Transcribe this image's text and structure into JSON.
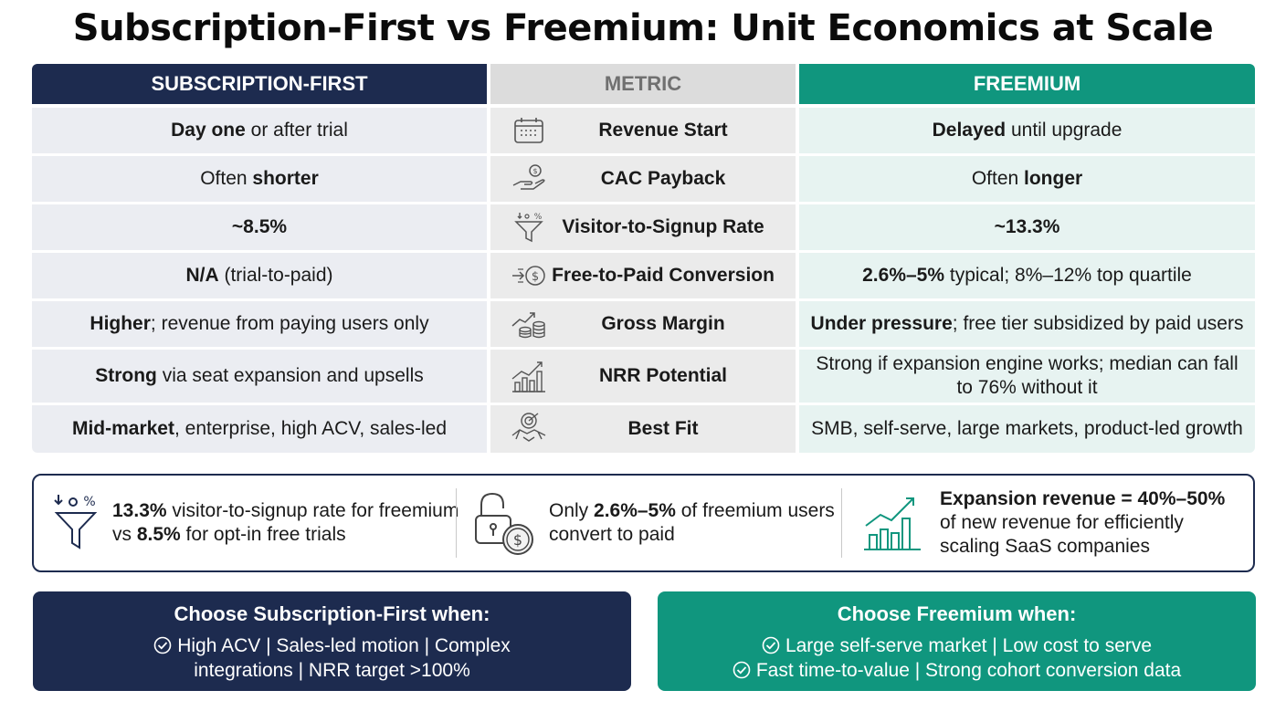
{
  "title": "Subscription-First vs Freemium: Unit Economics at Scale",
  "colors": {
    "navy": "#1d2b4f",
    "teal": "#10967e",
    "metric_header": "#dcdcdc"
  },
  "headers": {
    "left": "SUBSCRIPTION-FIRST",
    "mid": "METRIC",
    "right": "FREEMIUM"
  },
  "rows": [
    {
      "icon": "calendar-icon",
      "metric": "Revenue Start",
      "left_bold": "Day one",
      "left_rest": " or after trial",
      "right_bold": "Delayed",
      "right_rest": " until upgrade"
    },
    {
      "icon": "hand-coin-icon",
      "metric": "CAC Payback",
      "left_pre": "Often ",
      "left_bold": "shorter",
      "right_pre": "Often ",
      "right_bold": "longer"
    },
    {
      "icon": "funnel-icon",
      "metric": "Visitor-to-Signup Rate",
      "left_bold": "~8.5%",
      "right_bold": "~13.3%"
    },
    {
      "icon": "conversion-arrow-icon",
      "metric": "Free-to-Paid Conversion",
      "left_bold": "N/A",
      "left_rest": " (trial-to-paid)",
      "right_bold": "2.6%–5%",
      "right_rest": " typical; 8%–12% top quartile"
    },
    {
      "icon": "coin-stack-icon",
      "metric": "Gross Margin",
      "left_bold": "Higher",
      "left_rest": "; revenue from paying users only",
      "right_bold": "Under pressure",
      "right_rest": "; free tier subsidized by paid users"
    },
    {
      "icon": "growth-chart-icon",
      "metric": "NRR Potential",
      "left_bold": "Strong",
      "left_rest": " via seat expansion and upsells",
      "right_text": "Strong if expansion engine works; median can fall to 76% without it"
    },
    {
      "icon": "target-handshake-icon",
      "metric": "Best Fit",
      "left_bold": "Mid-market",
      "left_rest": ", enterprise, high ACV, sales-led",
      "right_text": "SMB, self-serve, large markets, product-led growth"
    }
  ],
  "stats": [
    {
      "icon": "funnel-icon",
      "bold1": "13.3%",
      "text1": " visitor-to-signup rate for freemium vs ",
      "bold2": "8.5%",
      "text2": " for opt-in free trials"
    },
    {
      "icon": "unlock-dollar-icon",
      "text1": "Only ",
      "bold1": "2.6%–5%",
      "text2": " of freemium users convert to paid"
    },
    {
      "icon": "growth-chart-icon",
      "bold1": "Expansion revenue = 40%–50%",
      "text1": " of new revenue for efficiently scaling SaaS companies"
    }
  ],
  "choose_left": {
    "title": "Choose Subscription-First when:",
    "line1": "High ACV | Sales-led motion | Complex",
    "line2": "integrations | NRR target >100%"
  },
  "choose_right": {
    "title": "Choose Freemium when:",
    "line1": "Large self-serve market | Low cost to serve",
    "line2": "Fast time-to-value | Strong cohort conversion data"
  }
}
